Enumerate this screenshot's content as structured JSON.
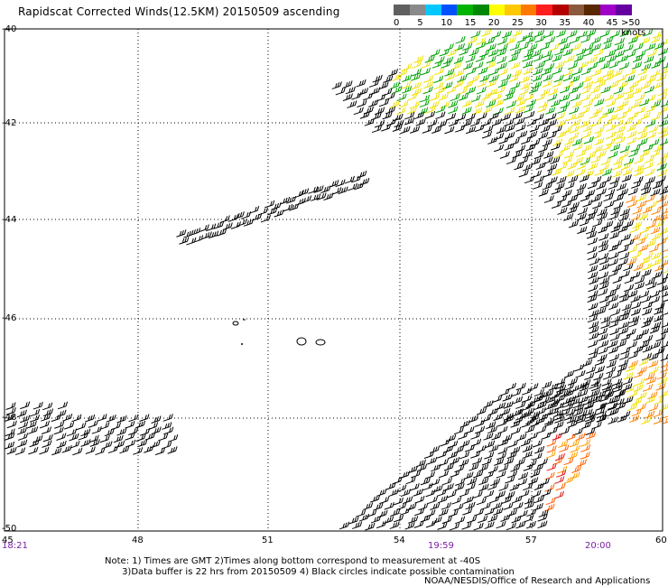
{
  "title": "Rapidscat Corrected Winds(12.5KM) 20150509 ascending",
  "colorbar": {
    "colors": [
      "#606060",
      "#8a8a8a",
      "#00c8ff",
      "#0050ff",
      "#00b400",
      "#008800",
      "#ffff00",
      "#ffc800",
      "#ff7800",
      "#ff1e1e",
      "#b40000",
      "#8b5a3c",
      "#5a2800",
      "#a000c8",
      "#6400a0"
    ],
    "labels": [
      "0",
      "5",
      "10",
      "15",
      "20",
      "25",
      "30",
      "35",
      "40",
      "45"
    ],
    "last_label": ">50 knots"
  },
  "axes": {
    "lat_labels": [
      "-40",
      "-42",
      "-44",
      "-46",
      "-48",
      "-50"
    ],
    "lon_labels": [
      "45",
      "48",
      "51",
      "54",
      "57",
      "60"
    ]
  },
  "times": {
    "left": "18:21",
    "mid": "19:59",
    "right": "20:00"
  },
  "notes": {
    "line1": "Note: 1) Times are GMT 2)Times along bottom correspond to measurement at -40S",
    "line2": "      3)Data buffer is 22 hrs from 20150509 4) Black circles indicate possible contamination"
  },
  "credit": "NOAA/NESDIS/Office of Research and Applications"
}
